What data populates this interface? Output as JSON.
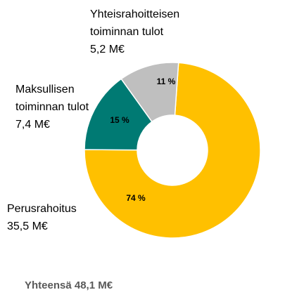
{
  "chart_data": {
    "type": "donut",
    "categories": [
      "Perusrahoitus",
      "Maksullisen toiminnan tulot",
      "Yhteisrahoitteisen toiminnan tulot"
    ],
    "values": [
      74,
      15,
      11
    ],
    "value_labels": [
      "74 %",
      "15 %",
      "11 %"
    ],
    "amounts": [
      35.5,
      7.4,
      5.2
    ],
    "amount_labels": [
      "35,5 M€",
      "7,4 M€",
      "5,2 M€"
    ],
    "colors": [
      "#FFC000",
      "#007A73",
      "#BFBFBF"
    ],
    "note": "Yhteensä 48,1 M€"
  }
}
